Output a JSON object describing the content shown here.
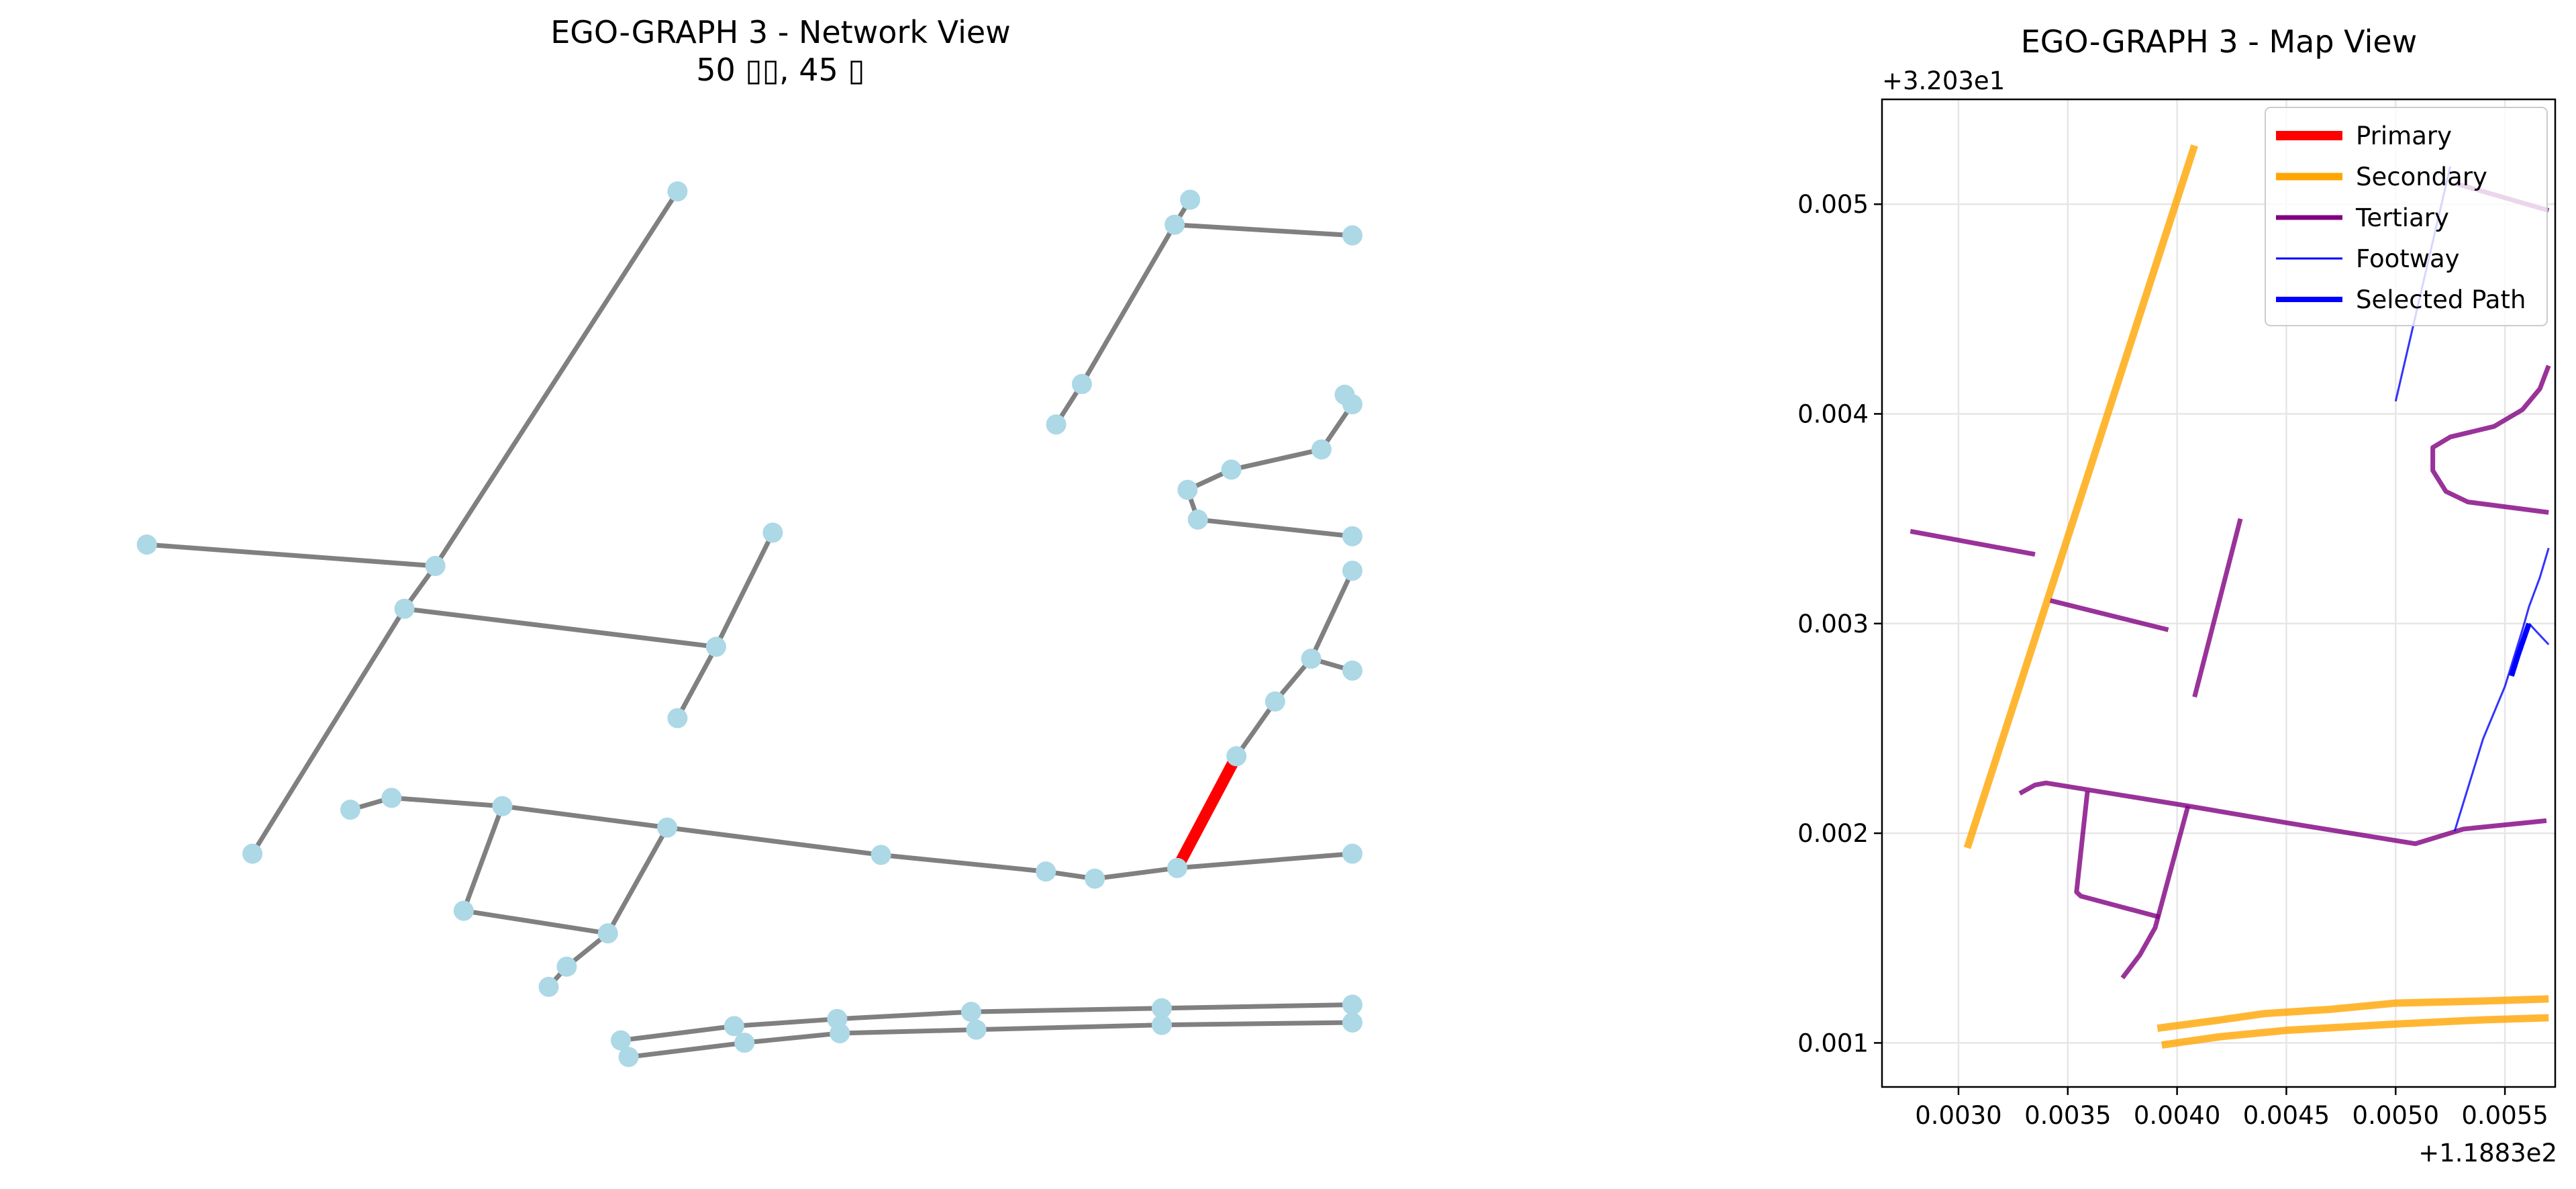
{
  "chart_data": [
    {
      "type": "network",
      "title": "EGO-GRAPH 3 - Network View",
      "subtitle": "50 ▯▯, 45 ▯",
      "colors": {
        "node": "#add8e6",
        "edge": "#808080",
        "highlight": "#ff0000"
      },
      "highlight_edge": [
        31,
        32
      ],
      "nodes": [
        [
          0.263,
          0.161
        ],
        [
          0.169,
          0.476
        ],
        [
          0.057,
          0.458
        ],
        [
          0.157,
          0.512
        ],
        [
          0.098,
          0.718
        ],
        [
          0.278,
          0.544
        ],
        [
          0.263,
          0.604
        ],
        [
          0.3,
          0.448
        ],
        [
          0.462,
          0.168
        ],
        [
          0.456,
          0.189
        ],
        [
          0.525,
          0.198
        ],
        [
          0.42,
          0.323
        ],
        [
          0.41,
          0.357
        ],
        [
          0.522,
          0.332
        ],
        [
          0.525,
          0.34
        ],
        [
          0.513,
          0.378
        ],
        [
          0.478,
          0.395
        ],
        [
          0.461,
          0.412
        ],
        [
          0.465,
          0.437
        ],
        [
          0.525,
          0.451
        ],
        [
          0.136,
          0.681
        ],
        [
          0.152,
          0.671
        ],
        [
          0.195,
          0.678
        ],
        [
          0.18,
          0.766
        ],
        [
          0.236,
          0.785
        ],
        [
          0.259,
          0.696
        ],
        [
          0.22,
          0.813
        ],
        [
          0.213,
          0.83
        ],
        [
          0.342,
          0.719
        ],
        [
          0.406,
          0.733
        ],
        [
          0.425,
          0.739
        ],
        [
          0.457,
          0.73
        ],
        [
          0.48,
          0.636
        ],
        [
          0.495,
          0.59
        ],
        [
          0.509,
          0.554
        ],
        [
          0.525,
          0.48
        ],
        [
          0.525,
          0.564
        ],
        [
          0.525,
          0.718
        ],
        [
          0.241,
          0.875
        ],
        [
          0.244,
          0.889
        ],
        [
          0.285,
          0.863
        ],
        [
          0.289,
          0.877
        ],
        [
          0.325,
          0.857
        ],
        [
          0.326,
          0.869
        ],
        [
          0.377,
          0.851
        ],
        [
          0.379,
          0.866
        ],
        [
          0.451,
          0.848
        ],
        [
          0.451,
          0.862
        ],
        [
          0.525,
          0.845
        ],
        [
          0.525,
          0.86
        ]
      ],
      "edges": [
        [
          0,
          1
        ],
        [
          1,
          2
        ],
        [
          1,
          3
        ],
        [
          3,
          4
        ],
        [
          3,
          5
        ],
        [
          5,
          6
        ],
        [
          5,
          7
        ],
        [
          8,
          9
        ],
        [
          9,
          10
        ],
        [
          9,
          11
        ],
        [
          11,
          12
        ],
        [
          13,
          14
        ],
        [
          14,
          15
        ],
        [
          15,
          16
        ],
        [
          16,
          17
        ],
        [
          17,
          18
        ],
        [
          18,
          19
        ],
        [
          20,
          21
        ],
        [
          21,
          22
        ],
        [
          22,
          23
        ],
        [
          23,
          24
        ],
        [
          22,
          25
        ],
        [
          25,
          24
        ],
        [
          24,
          26
        ],
        [
          26,
          27
        ],
        [
          25,
          28
        ],
        [
          28,
          29
        ],
        [
          29,
          30
        ],
        [
          30,
          31
        ],
        [
          31,
          37
        ],
        [
          31,
          32
        ],
        [
          32,
          33
        ],
        [
          33,
          34
        ],
        [
          34,
          35
        ],
        [
          34,
          36
        ],
        [
          38,
          40
        ],
        [
          40,
          42
        ],
        [
          42,
          44
        ],
        [
          44,
          46
        ],
        [
          46,
          48
        ],
        [
          39,
          41
        ],
        [
          41,
          43
        ],
        [
          43,
          45
        ],
        [
          45,
          47
        ],
        [
          47,
          49
        ]
      ]
    },
    {
      "type": "line",
      "title": "EGO-GRAPH 3 - Map View",
      "x_offset_label": "+1.1883e2",
      "y_offset_label": "+3.203e1",
      "xlim": [
        0.00265,
        0.00573
      ],
      "ylim": [
        0.00079,
        0.0055
      ],
      "xticks": [
        0.003,
        0.0035,
        0.004,
        0.0045,
        0.005,
        0.0055
      ],
      "xtick_labels": [
        "0.0030",
        "0.0035",
        "0.0040",
        "0.0045",
        "0.0050",
        "0.0055"
      ],
      "yticks": [
        0.001,
        0.002,
        0.003,
        0.004,
        0.005
      ],
      "ytick_labels": [
        "0.001",
        "0.002",
        "0.003",
        "0.004",
        "0.005"
      ],
      "grid": true,
      "legend_position": "top-right",
      "legend": [
        {
          "label": "Primary",
          "color": "#ff0000",
          "width": 5
        },
        {
          "label": "Secondary",
          "color": "#ffa500",
          "width": 4
        },
        {
          "label": "Tertiary",
          "color": "#800080",
          "width": 3
        },
        {
          "label": "Footway",
          "color": "#0000ff",
          "width": 1
        },
        {
          "label": "Selected Path",
          "color": "#0000ff",
          "width": 4
        }
      ],
      "roads": [
        {
          "type": "Secondary",
          "points": [
            [
              0.00304,
              0.00193
            ],
            [
              0.00408,
              0.00528
            ]
          ]
        },
        {
          "type": "Secondary",
          "points": [
            [
              0.00391,
              0.00107
            ],
            [
              0.0042,
              0.00111
            ],
            [
              0.0044,
              0.00114
            ],
            [
              0.0047,
              0.00116
            ],
            [
              0.005,
              0.00119
            ],
            [
              0.0054,
              0.0012
            ],
            [
              0.0057,
              0.00121
            ]
          ]
        },
        {
          "type": "Secondary",
          "points": [
            [
              0.00393,
              0.00099
            ],
            [
              0.0042,
              0.00103
            ],
            [
              0.0045,
              0.00106
            ],
            [
              0.005,
              0.00109
            ],
            [
              0.0054,
              0.00111
            ],
            [
              0.0057,
              0.00112
            ]
          ]
        },
        {
          "type": "Tertiary",
          "points": [
            [
              0.00278,
              0.00344
            ],
            [
              0.00335,
              0.00333
            ]
          ]
        },
        {
          "type": "Tertiary",
          "points": [
            [
              0.00342,
              0.00311
            ],
            [
              0.00396,
              0.00297
            ]
          ]
        },
        {
          "type": "Tertiary",
          "points": [
            [
              0.00408,
              0.00265
            ],
            [
              0.00429,
              0.0035
            ]
          ]
        },
        {
          "type": "Tertiary",
          "points": [
            [
              0.00328,
              0.00219
            ],
            [
              0.00335,
              0.00223
            ],
            [
              0.0034,
              0.00224
            ],
            [
              0.00405,
              0.00213
            ],
            [
              0.0045,
              0.00205
            ],
            [
              0.00509,
              0.00195
            ],
            [
              0.00531,
              0.00202
            ],
            [
              0.00569,
              0.00206
            ]
          ]
        },
        {
          "type": "Tertiary",
          "points": [
            [
              0.00359,
              0.0022
            ],
            [
              0.00354,
              0.00172
            ],
            [
              0.00356,
              0.0017
            ],
            [
              0.00392,
              0.0016
            ]
          ]
        },
        {
          "type": "Tertiary",
          "points": [
            [
              0.00405,
              0.00213
            ],
            [
              0.0039,
              0.00155
            ],
            [
              0.00383,
              0.00142
            ],
            [
              0.00375,
              0.00131
            ]
          ]
        },
        {
          "type": "Tertiary",
          "points": [
            [
              0.0057,
              0.00353
            ],
            [
              0.00533,
              0.00358
            ],
            [
              0.00523,
              0.00363
            ],
            [
              0.00517,
              0.00373
            ],
            [
              0.00517,
              0.00384
            ],
            [
              0.00525,
              0.00389
            ],
            [
              0.00545,
              0.00394
            ],
            [
              0.00558,
              0.00402
            ],
            [
              0.00566,
              0.00412
            ],
            [
              0.0057,
              0.00423
            ]
          ]
        },
        {
          "type": "Tertiary",
          "points": [
            [
              0.00527,
              0.0051
            ],
            [
              0.0057,
              0.00497
            ]
          ]
        },
        {
          "type": "Footway",
          "points": [
            [
              0.005,
              0.00406
            ],
            [
              0.00525,
              0.00518
            ]
          ]
        },
        {
          "type": "Footway",
          "points": [
            [
              0.00527,
              0.00201
            ],
            [
              0.0054,
              0.00245
            ],
            [
              0.0055,
              0.0027
            ],
            [
              0.00558,
              0.00297
            ],
            [
              0.00561,
              0.00308
            ],
            [
              0.00566,
              0.00322
            ],
            [
              0.0057,
              0.00336
            ]
          ]
        },
        {
          "type": "Footway",
          "points": [
            [
              0.00561,
              0.003
            ],
            [
              0.0057,
              0.0029
            ]
          ]
        },
        {
          "type": "Selected Path",
          "points": [
            [
              0.00553,
              0.00275
            ],
            [
              0.00556,
              0.00285
            ],
            [
              0.00561,
              0.003
            ]
          ]
        }
      ]
    }
  ]
}
